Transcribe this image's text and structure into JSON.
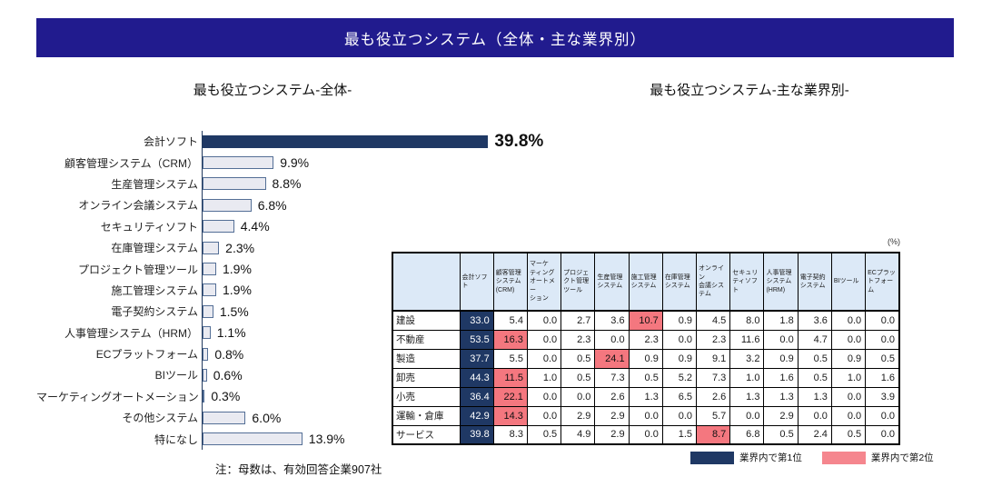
{
  "banner": {
    "title": "最も役立つシステム（全体・主な業界別）"
  },
  "left_chart": {
    "title": "最も役立つシステム-全体-",
    "note": "注：母数は、有効回答企業907社"
  },
  "right_table": {
    "title": "最も役立つシステム-主な業界別-",
    "unit_label": "(%)"
  },
  "legend": {
    "first": "業界内で第1位",
    "second": "業界内で第2位"
  },
  "colors": {
    "banner_bg": "#211B8E",
    "rank1": "#1F3864",
    "rank2": "#F4777F",
    "rank2_legend": "#F5868E",
    "bar_fill": "#E9EAF1",
    "bar_border": "#546F96",
    "header_bg": "#DCE9F7"
  },
  "chart_data": [
    {
      "type": "bar",
      "title": "最も役立つシステム-全体-",
      "orientation": "horizontal",
      "unit": "%",
      "xlim": [
        0,
        45
      ],
      "grid": false,
      "categories": [
        "会計ソフト",
        "顧客管理システム（CRM）",
        "生産管理システム",
        "オンライン会議システム",
        "セキュリティソフト",
        "在庫管理システム",
        "プロジェクト管理ツール",
        "施工管理システム",
        "電子契約システム",
        "人事管理システム（HRM）",
        "ECプラットフォーム",
        "BIツール",
        "マーケティングオートメーション",
        "その他システム",
        "特になし"
      ],
      "values": [
        39.8,
        9.9,
        8.8,
        6.8,
        4.4,
        2.3,
        1.9,
        1.9,
        1.5,
        1.1,
        0.8,
        0.6,
        0.3,
        6.0,
        13.9
      ],
      "highlight_index": 0
    },
    {
      "type": "table",
      "title": "最も役立つシステム-主な業界別-",
      "unit": "(%)",
      "columns": [
        "会計ソフト",
        "顧客管理\nシステム\n(CRM)",
        "マーケ\nティング\nオートメー\nション",
        "プロジェ\nクト管理\nツール",
        "生産管理\nシステム",
        "施工管理\nシステム",
        "在庫管理\nシステム",
        "オンライン\n会議シス\nテム",
        "セキュリ\nティソフト",
        "人事管理\nシステム\n(HRM)",
        "電子契約\nシステム",
        "BIツール",
        "ECプラッ\nトフォーム"
      ],
      "rows": [
        {
          "label": "建設",
          "values": [
            33.0,
            5.4,
            0.0,
            2.7,
            3.6,
            10.7,
            0.9,
            4.5,
            8.0,
            1.8,
            3.6,
            0.0,
            0.0
          ],
          "rank1_col": 0,
          "rank2_col": 5
        },
        {
          "label": "不動産",
          "values": [
            53.5,
            16.3,
            0.0,
            2.3,
            0.0,
            2.3,
            0.0,
            2.3,
            11.6,
            0.0,
            4.7,
            0.0,
            0.0
          ],
          "rank1_col": 0,
          "rank2_col": 1
        },
        {
          "label": "製造",
          "values": [
            37.7,
            5.5,
            0.0,
            0.5,
            24.1,
            0.9,
            0.9,
            9.1,
            3.2,
            0.9,
            0.5,
            0.9,
            0.5
          ],
          "rank1_col": 0,
          "rank2_col": 4
        },
        {
          "label": "卸売",
          "values": [
            44.3,
            11.5,
            1.0,
            0.5,
            7.3,
            0.5,
            5.2,
            7.3,
            1.0,
            1.6,
            0.5,
            1.0,
            1.6
          ],
          "rank1_col": 0,
          "rank2_col": 1
        },
        {
          "label": "小売",
          "values": [
            36.4,
            22.1,
            0.0,
            0.0,
            2.6,
            1.3,
            6.5,
            2.6,
            1.3,
            1.3,
            1.3,
            0.0,
            3.9
          ],
          "rank1_col": 0,
          "rank2_col": 1
        },
        {
          "label": "運輸・倉庫",
          "values": [
            42.9,
            14.3,
            0.0,
            2.9,
            2.9,
            0.0,
            0.0,
            5.7,
            0.0,
            2.9,
            0.0,
            0.0,
            0.0
          ],
          "rank1_col": 0,
          "rank2_col": 1
        },
        {
          "label": "サービス",
          "values": [
            39.8,
            8.3,
            0.5,
            4.9,
            2.9,
            0.0,
            1.5,
            8.7,
            6.8,
            0.5,
            2.4,
            0.5,
            0.0
          ],
          "rank1_col": 0,
          "rank2_col": 7
        }
      ],
      "legend": [
        {
          "color": "#1F3864",
          "label": "業界内で第1位"
        },
        {
          "color": "#F5868E",
          "label": "業界内で第2位"
        }
      ]
    }
  ]
}
